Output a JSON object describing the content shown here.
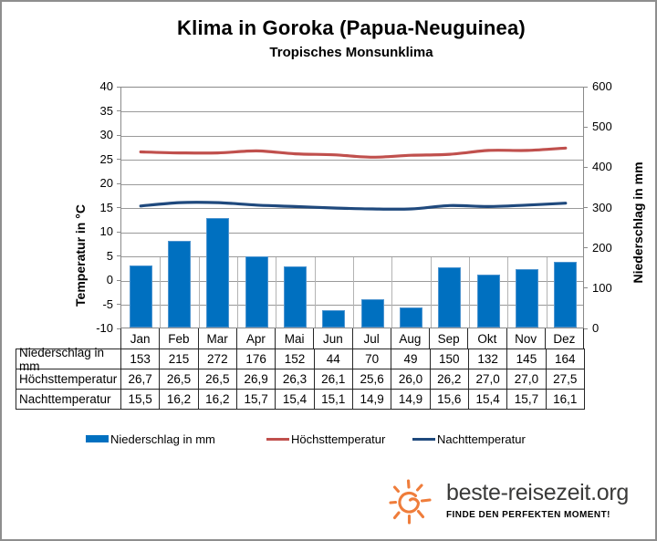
{
  "title": "Klima in Goroka (Papua-Neuguinea)",
  "subtitle": "Tropisches Monsunklima",
  "chart_data": {
    "type": "bar",
    "categories": [
      "Jan",
      "Feb",
      "Mar",
      "Apr",
      "Mai",
      "Jun",
      "Jul",
      "Aug",
      "Sep",
      "Okt",
      "Nov",
      "Dez"
    ],
    "series": [
      {
        "name": "Niederschlag in mm",
        "type": "bar",
        "axis": "right",
        "color": "#0070C0",
        "values": [
          153,
          215,
          272,
          176,
          152,
          44,
          70,
          49,
          150,
          132,
          145,
          164
        ]
      },
      {
        "name": "Höchsttemperatur",
        "type": "line",
        "axis": "left",
        "color": "#C0504D",
        "values": [
          26.7,
          26.5,
          26.5,
          26.9,
          26.3,
          26.1,
          25.6,
          26.0,
          26.2,
          27.0,
          27.0,
          27.5
        ]
      },
      {
        "name": "Nachttemperatur",
        "type": "line",
        "axis": "left",
        "color": "#1F497D",
        "values": [
          15.5,
          16.2,
          16.2,
          15.7,
          15.4,
          15.1,
          14.9,
          14.9,
          15.6,
          15.4,
          15.7,
          16.1
        ]
      }
    ],
    "left_axis": {
      "label": "Temperatur in °C",
      "min": -10,
      "max": 40,
      "step": 5
    },
    "right_axis": {
      "label": "Niederschlag in  mm",
      "min": 0,
      "max": 600,
      "step": 100
    },
    "grid": true,
    "legend_position": "bottom"
  },
  "table": {
    "rows": [
      {
        "label": "Niederschlag in mm",
        "values": [
          "153",
          "215",
          "272",
          "176",
          "152",
          "44",
          "70",
          "49",
          "150",
          "132",
          "145",
          "164"
        ]
      },
      {
        "label": "Höchsttemperatur",
        "values": [
          "26,7",
          "26,5",
          "26,5",
          "26,9",
          "26,3",
          "26,1",
          "25,6",
          "26,0",
          "26,2",
          "27,0",
          "27,0",
          "27,5"
        ]
      },
      {
        "label": "Nachttemperatur",
        "values": [
          "15,5",
          "16,2",
          "16,2",
          "15,7",
          "15,4",
          "15,1",
          "14,9",
          "14,9",
          "15,6",
          "15,4",
          "15,7",
          "16,1"
        ]
      }
    ]
  },
  "legend": {
    "items": [
      {
        "label": "Niederschlag in mm",
        "color": "#0070C0",
        "shape": "rect"
      },
      {
        "label": "Höchsttemperatur",
        "color": "#C0504D",
        "shape": "line"
      },
      {
        "label": "Nachttemperatur",
        "color": "#1F497D",
        "shape": "line"
      }
    ]
  },
  "branding": {
    "site": "beste-reisezeit.org",
    "slogan": "FINDE DEN PERFEKTEN MOMENT!",
    "sun_color": "#EF7D3B",
    "text_color": "#3A3A39"
  }
}
